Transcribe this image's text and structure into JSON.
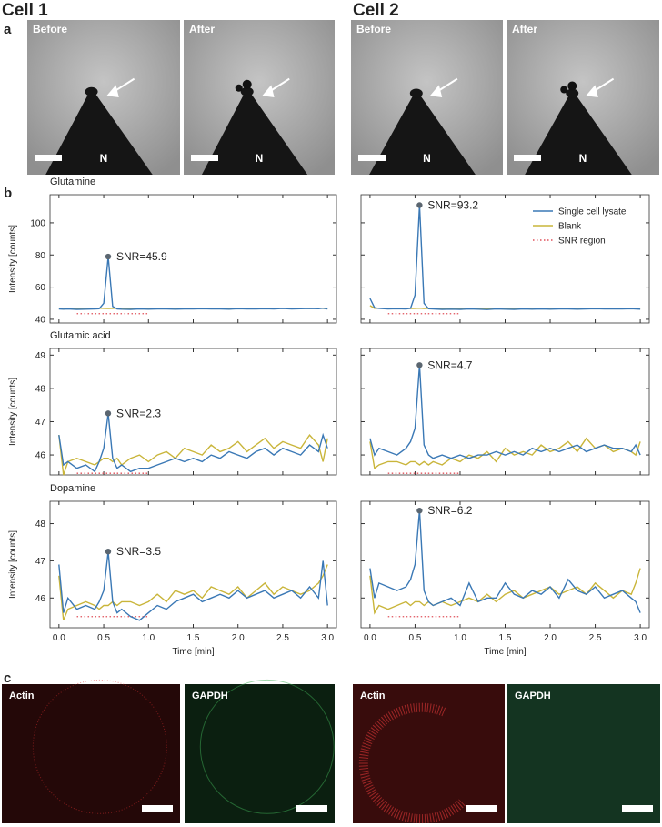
{
  "figure": {
    "cells": [
      "Cell 1",
      "Cell 2"
    ],
    "panels": [
      "a",
      "b",
      "c"
    ],
    "microscopy_labels": [
      "Before",
      "After",
      "Before",
      "After"
    ],
    "needle_label": "N",
    "fluorescence_labels": [
      "Actin",
      "GAPDH",
      "Actin",
      "GAPDH"
    ]
  },
  "chart_data": [
    {
      "type": "line",
      "title": "Glutamine",
      "ylabel": "Intensity [counts]",
      "ytick_labels": true,
      "x": [
        0,
        0.05,
        0.1,
        0.2,
        0.3,
        0.4,
        0.45,
        0.5,
        0.55,
        0.6,
        0.65,
        0.7,
        0.8,
        0.9,
        1.0,
        1.1,
        1.2,
        1.3,
        1.4,
        1.5,
        1.6,
        1.7,
        1.8,
        1.9,
        2.0,
        2.1,
        2.2,
        2.3,
        2.4,
        2.5,
        2.6,
        2.7,
        2.8,
        2.9,
        2.95,
        3.0
      ],
      "xlim": [
        -0.1,
        3.1
      ],
      "xticks": [
        0,
        0.5,
        1,
        1.5,
        2,
        2.5,
        3
      ],
      "ylim": [
        37.7,
        117.5
      ],
      "yticks": [
        40,
        60,
        80,
        100
      ],
      "series": [
        {
          "color": "#3a78b5",
          "values": [
            46.5,
            46.3,
            46.4,
            46.2,
            46.3,
            46.4,
            46.6,
            50,
            79,
            48,
            46.5,
            46.3,
            46.2,
            46.4,
            46.3,
            46.5,
            46.4,
            46.3,
            46.5,
            46.4,
            46.6,
            46.4,
            46.5,
            46.3,
            46.6,
            46.5,
            46.4,
            46.6,
            46.5,
            46.7,
            46.5,
            46.6,
            46.7,
            46.6,
            46.9,
            46.4
          ]
        },
        {
          "color": "#c9b53a",
          "values": [
            46.9,
            46.7,
            46.8,
            46.9,
            46.7,
            46.8,
            46.9,
            46.8,
            46.7,
            46.8,
            46.9,
            46.8,
            46.7,
            46.9,
            46.8,
            46.7,
            46.9,
            46.8,
            46.9,
            46.7,
            46.8,
            46.9,
            46.8,
            46.7,
            46.9,
            46.8,
            46.9,
            46.8,
            46.7,
            46.9,
            46.8,
            46.9,
            46.8,
            46.9,
            46.8,
            46.7
          ]
        }
      ],
      "snr_region": {
        "color": "#e0505a",
        "x": [
          0.2,
          1.0
        ],
        "y": 43.5
      },
      "annotation": {
        "x": 0.55,
        "y": 79,
        "text": "SNR=45.9"
      }
    },
    {
      "type": "line",
      "legend": "upper right",
      "x": [
        0,
        0.05,
        0.1,
        0.2,
        0.3,
        0.4,
        0.45,
        0.5,
        0.55,
        0.6,
        0.65,
        0.7,
        0.8,
        0.9,
        1.0,
        1.1,
        1.2,
        1.3,
        1.4,
        1.5,
        1.6,
        1.7,
        1.8,
        1.9,
        2.0,
        2.1,
        2.2,
        2.3,
        2.4,
        2.5,
        2.6,
        2.7,
        2.8,
        2.9,
        2.95,
        3.0
      ],
      "xlim": [
        -0.1,
        3.1
      ],
      "xticks": [
        0,
        0.5,
        1,
        1.5,
        2,
        2.5,
        3
      ],
      "ylim": [
        37.7,
        117.5
      ],
      "yticks": [
        40,
        60,
        80,
        100
      ],
      "series": [
        {
          "name": "Single cell lysate",
          "color": "#3a78b5",
          "values": [
            53,
            47.2,
            46.8,
            46.5,
            46.6,
            46.4,
            46.8,
            55,
            111,
            50,
            46.6,
            46.4,
            46.2,
            46.3,
            46.2,
            46.4,
            46.3,
            46.1,
            46.4,
            46.3,
            46.2,
            46.4,
            46.3,
            46.5,
            46.3,
            46.4,
            46.5,
            46.3,
            46.4,
            46.6,
            46.4,
            46.5,
            46.4,
            46.6,
            46.5,
            46.3
          ]
        },
        {
          "name": "Blank",
          "color": "#c9b53a",
          "values": [
            48.5,
            46.8,
            46.9,
            46.7,
            46.8,
            46.9,
            46.7,
            46.8,
            46.9,
            46.7,
            46.8,
            46.9,
            46.8,
            46.7,
            46.9,
            46.8,
            46.7,
            46.8,
            46.9,
            46.8,
            46.7,
            46.9,
            46.8,
            46.9,
            46.7,
            46.8,
            46.9,
            46.8,
            46.7,
            46.9,
            46.8,
            46.7,
            46.9,
            46.8,
            46.7,
            46.8
          ]
        }
      ],
      "snr_region": {
        "name": "SNR region",
        "color": "#e0505a",
        "x": [
          0.2,
          1.0
        ],
        "y": 43.5
      },
      "annotation": {
        "x": 0.55,
        "y": 111,
        "text": "SNR=93.2"
      }
    },
    {
      "type": "line",
      "title": "Glutamic acid",
      "ylabel": "Intensity [counts]",
      "ytick_labels": true,
      "x": [
        0,
        0.05,
        0.1,
        0.2,
        0.3,
        0.4,
        0.45,
        0.5,
        0.55,
        0.6,
        0.65,
        0.7,
        0.8,
        0.9,
        1.0,
        1.1,
        1.2,
        1.3,
        1.4,
        1.5,
        1.6,
        1.7,
        1.8,
        1.9,
        2.0,
        2.1,
        2.2,
        2.3,
        2.4,
        2.5,
        2.6,
        2.7,
        2.8,
        2.9,
        2.95,
        3.0
      ],
      "xlim": [
        -0.1,
        3.1
      ],
      "xticks": [
        0,
        0.5,
        1,
        1.5,
        2,
        2.5,
        3
      ],
      "ylim": [
        45.4,
        49.2
      ],
      "yticks": [
        46,
        47,
        48,
        49
      ],
      "series": [
        {
          "color": "#3a78b5",
          "values": [
            46.6,
            45.7,
            45.8,
            45.6,
            45.7,
            45.5,
            45.8,
            46.2,
            47.25,
            45.9,
            45.6,
            45.7,
            45.5,
            45.6,
            45.6,
            45.7,
            45.8,
            45.9,
            45.8,
            45.9,
            45.8,
            46.0,
            45.9,
            46.1,
            46.0,
            45.9,
            46.1,
            46.2,
            46.0,
            46.2,
            46.1,
            46.0,
            46.3,
            46.1,
            46.6,
            46.2
          ]
        },
        {
          "color": "#c9b53a",
          "values": [
            46.6,
            45.4,
            45.8,
            45.9,
            45.8,
            45.7,
            45.8,
            45.9,
            45.9,
            45.8,
            45.9,
            45.7,
            45.9,
            46.0,
            45.8,
            46.0,
            46.1,
            45.9,
            46.2,
            46.1,
            46.0,
            46.3,
            46.1,
            46.2,
            46.4,
            46.1,
            46.3,
            46.5,
            46.2,
            46.4,
            46.3,
            46.2,
            46.6,
            46.3,
            45.8,
            46.5
          ]
        }
      ],
      "snr_region": {
        "color": "#e0505a",
        "x": [
          0.2,
          1.0
        ],
        "y": 45.45
      },
      "annotation": {
        "x": 0.55,
        "y": 47.25,
        "text": "SNR=2.3"
      }
    },
    {
      "type": "line",
      "x": [
        0,
        0.05,
        0.1,
        0.2,
        0.3,
        0.4,
        0.45,
        0.5,
        0.55,
        0.6,
        0.65,
        0.7,
        0.8,
        0.9,
        1.0,
        1.1,
        1.2,
        1.3,
        1.4,
        1.5,
        1.6,
        1.7,
        1.8,
        1.9,
        2.0,
        2.1,
        2.2,
        2.3,
        2.4,
        2.5,
        2.6,
        2.7,
        2.8,
        2.9,
        2.95,
        3.0
      ],
      "xlim": [
        -0.1,
        3.1
      ],
      "xticks": [
        0,
        0.5,
        1,
        1.5,
        2,
        2.5,
        3
      ],
      "ylim": [
        45.4,
        49.2
      ],
      "yticks": [
        46,
        47,
        48,
        49
      ],
      "series": [
        {
          "color": "#3a78b5",
          "values": [
            46.5,
            46.0,
            46.2,
            46.1,
            46.0,
            46.2,
            46.4,
            46.8,
            48.7,
            46.3,
            46.0,
            45.9,
            46.0,
            45.9,
            46.0,
            45.9,
            46.0,
            46.0,
            46.1,
            46.0,
            46.1,
            46.0,
            46.2,
            46.1,
            46.2,
            46.1,
            46.2,
            46.3,
            46.1,
            46.2,
            46.3,
            46.2,
            46.2,
            46.1,
            46.3,
            46.0
          ]
        },
        {
          "color": "#c9b53a",
          "values": [
            46.4,
            45.6,
            45.7,
            45.8,
            45.8,
            45.7,
            45.8,
            45.8,
            45.7,
            45.8,
            45.7,
            45.8,
            45.7,
            45.9,
            45.8,
            46.0,
            45.9,
            46.1,
            45.8,
            46.2,
            46.0,
            46.1,
            46.0,
            46.3,
            46.1,
            46.2,
            46.4,
            46.1,
            46.5,
            46.2,
            46.3,
            46.1,
            46.2,
            46.1,
            46.0,
            46.4
          ]
        }
      ],
      "snr_region": {
        "color": "#e0505a",
        "x": [
          0.2,
          1.0
        ],
        "y": 45.45
      },
      "annotation": {
        "x": 0.55,
        "y": 48.7,
        "text": "SNR=4.7"
      }
    },
    {
      "type": "line",
      "title": "Dopamine",
      "ylabel": "Intensity [counts]",
      "xlabel": "Time [min]",
      "ytick_labels": true,
      "xtick_labels": true,
      "x": [
        0,
        0.05,
        0.1,
        0.2,
        0.3,
        0.4,
        0.45,
        0.5,
        0.55,
        0.6,
        0.65,
        0.7,
        0.8,
        0.9,
        1.0,
        1.1,
        1.2,
        1.3,
        1.4,
        1.5,
        1.6,
        1.7,
        1.8,
        1.9,
        2.0,
        2.1,
        2.2,
        2.3,
        2.4,
        2.5,
        2.6,
        2.7,
        2.8,
        2.9,
        2.95,
        3.0
      ],
      "xlim": [
        -0.1,
        3.1
      ],
      "xticks": [
        {
          "value": 0,
          "label": "0.0"
        },
        0.5,
        {
          "value": 1,
          "label": "1.0"
        },
        1.5,
        {
          "value": 2,
          "label": "2.0"
        },
        2.5,
        {
          "value": 3,
          "label": "3.0"
        }
      ],
      "ylim": [
        45.2,
        48.6
      ],
      "yticks": [
        46,
        47,
        48
      ],
      "series": [
        {
          "color": "#3a78b5",
          "values": [
            46.9,
            45.6,
            46.0,
            45.7,
            45.8,
            45.7,
            45.9,
            46.2,
            47.25,
            45.9,
            45.6,
            45.7,
            45.5,
            45.4,
            45.6,
            45.8,
            45.7,
            45.9,
            46.0,
            46.1,
            45.9,
            46.0,
            46.1,
            46.0,
            46.2,
            46.0,
            46.1,
            46.2,
            46.0,
            46.1,
            46.2,
            46.0,
            46.3,
            46.0,
            47.0,
            45.8
          ]
        },
        {
          "color": "#c9b53a",
          "values": [
            46.6,
            45.4,
            45.7,
            45.8,
            45.9,
            45.8,
            45.7,
            45.8,
            45.8,
            45.9,
            45.8,
            45.9,
            45.9,
            45.8,
            45.9,
            46.1,
            45.9,
            46.2,
            46.1,
            46.2,
            46.0,
            46.3,
            46.2,
            46.1,
            46.3,
            46.0,
            46.2,
            46.4,
            46.1,
            46.3,
            46.2,
            46.1,
            46.2,
            46.4,
            46.6,
            46.9
          ]
        }
      ],
      "snr_region": {
        "color": "#e0505a",
        "x": [
          0.2,
          1.0
        ],
        "y": 45.5
      },
      "annotation": {
        "x": 0.55,
        "y": 47.25,
        "text": "SNR=3.5"
      }
    },
    {
      "type": "line",
      "xlabel": "Time [min]",
      "xtick_labels": true,
      "x": [
        0,
        0.05,
        0.1,
        0.2,
        0.3,
        0.4,
        0.45,
        0.5,
        0.55,
        0.6,
        0.65,
        0.7,
        0.8,
        0.9,
        1.0,
        1.1,
        1.2,
        1.3,
        1.4,
        1.5,
        1.6,
        1.7,
        1.8,
        1.9,
        2.0,
        2.1,
        2.2,
        2.3,
        2.4,
        2.5,
        2.6,
        2.7,
        2.8,
        2.9,
        2.95,
        3.0
      ],
      "xlim": [
        -0.1,
        3.1
      ],
      "xticks": [
        {
          "value": 0,
          "label": "0.0"
        },
        0.5,
        {
          "value": 1,
          "label": "1.0"
        },
        1.5,
        {
          "value": 2,
          "label": "2.0"
        },
        2.5,
        {
          "value": 3,
          "label": "3.0"
        }
      ],
      "ylim": [
        45.2,
        48.6
      ],
      "yticks": [
        46,
        47,
        48
      ],
      "series": [
        {
          "color": "#3a78b5",
          "values": [
            46.8,
            46.0,
            46.4,
            46.3,
            46.2,
            46.3,
            46.5,
            46.9,
            48.35,
            46.2,
            45.9,
            45.8,
            45.9,
            46.0,
            45.8,
            46.4,
            45.9,
            46.0,
            46.0,
            46.4,
            46.1,
            46.0,
            46.2,
            46.1,
            46.3,
            46.0,
            46.5,
            46.2,
            46.1,
            46.3,
            46.0,
            46.1,
            46.2,
            46.0,
            45.9,
            45.6
          ]
        },
        {
          "color": "#c9b53a",
          "values": [
            46.6,
            45.6,
            45.8,
            45.7,
            45.8,
            45.9,
            45.8,
            45.9,
            45.9,
            45.8,
            45.9,
            45.8,
            45.9,
            45.8,
            45.9,
            46.0,
            45.9,
            46.1,
            45.9,
            46.1,
            46.2,
            46.0,
            46.1,
            46.2,
            46.3,
            46.1,
            46.2,
            46.3,
            46.1,
            46.4,
            46.2,
            46.0,
            46.2,
            46.1,
            46.4,
            46.8
          ]
        }
      ],
      "snr_region": {
        "color": "#e0505a",
        "x": [
          0.2,
          1.0
        ],
        "y": 45.5
      },
      "annotation": {
        "x": 0.55,
        "y": 48.35,
        "text": "SNR=6.2"
      }
    }
  ]
}
